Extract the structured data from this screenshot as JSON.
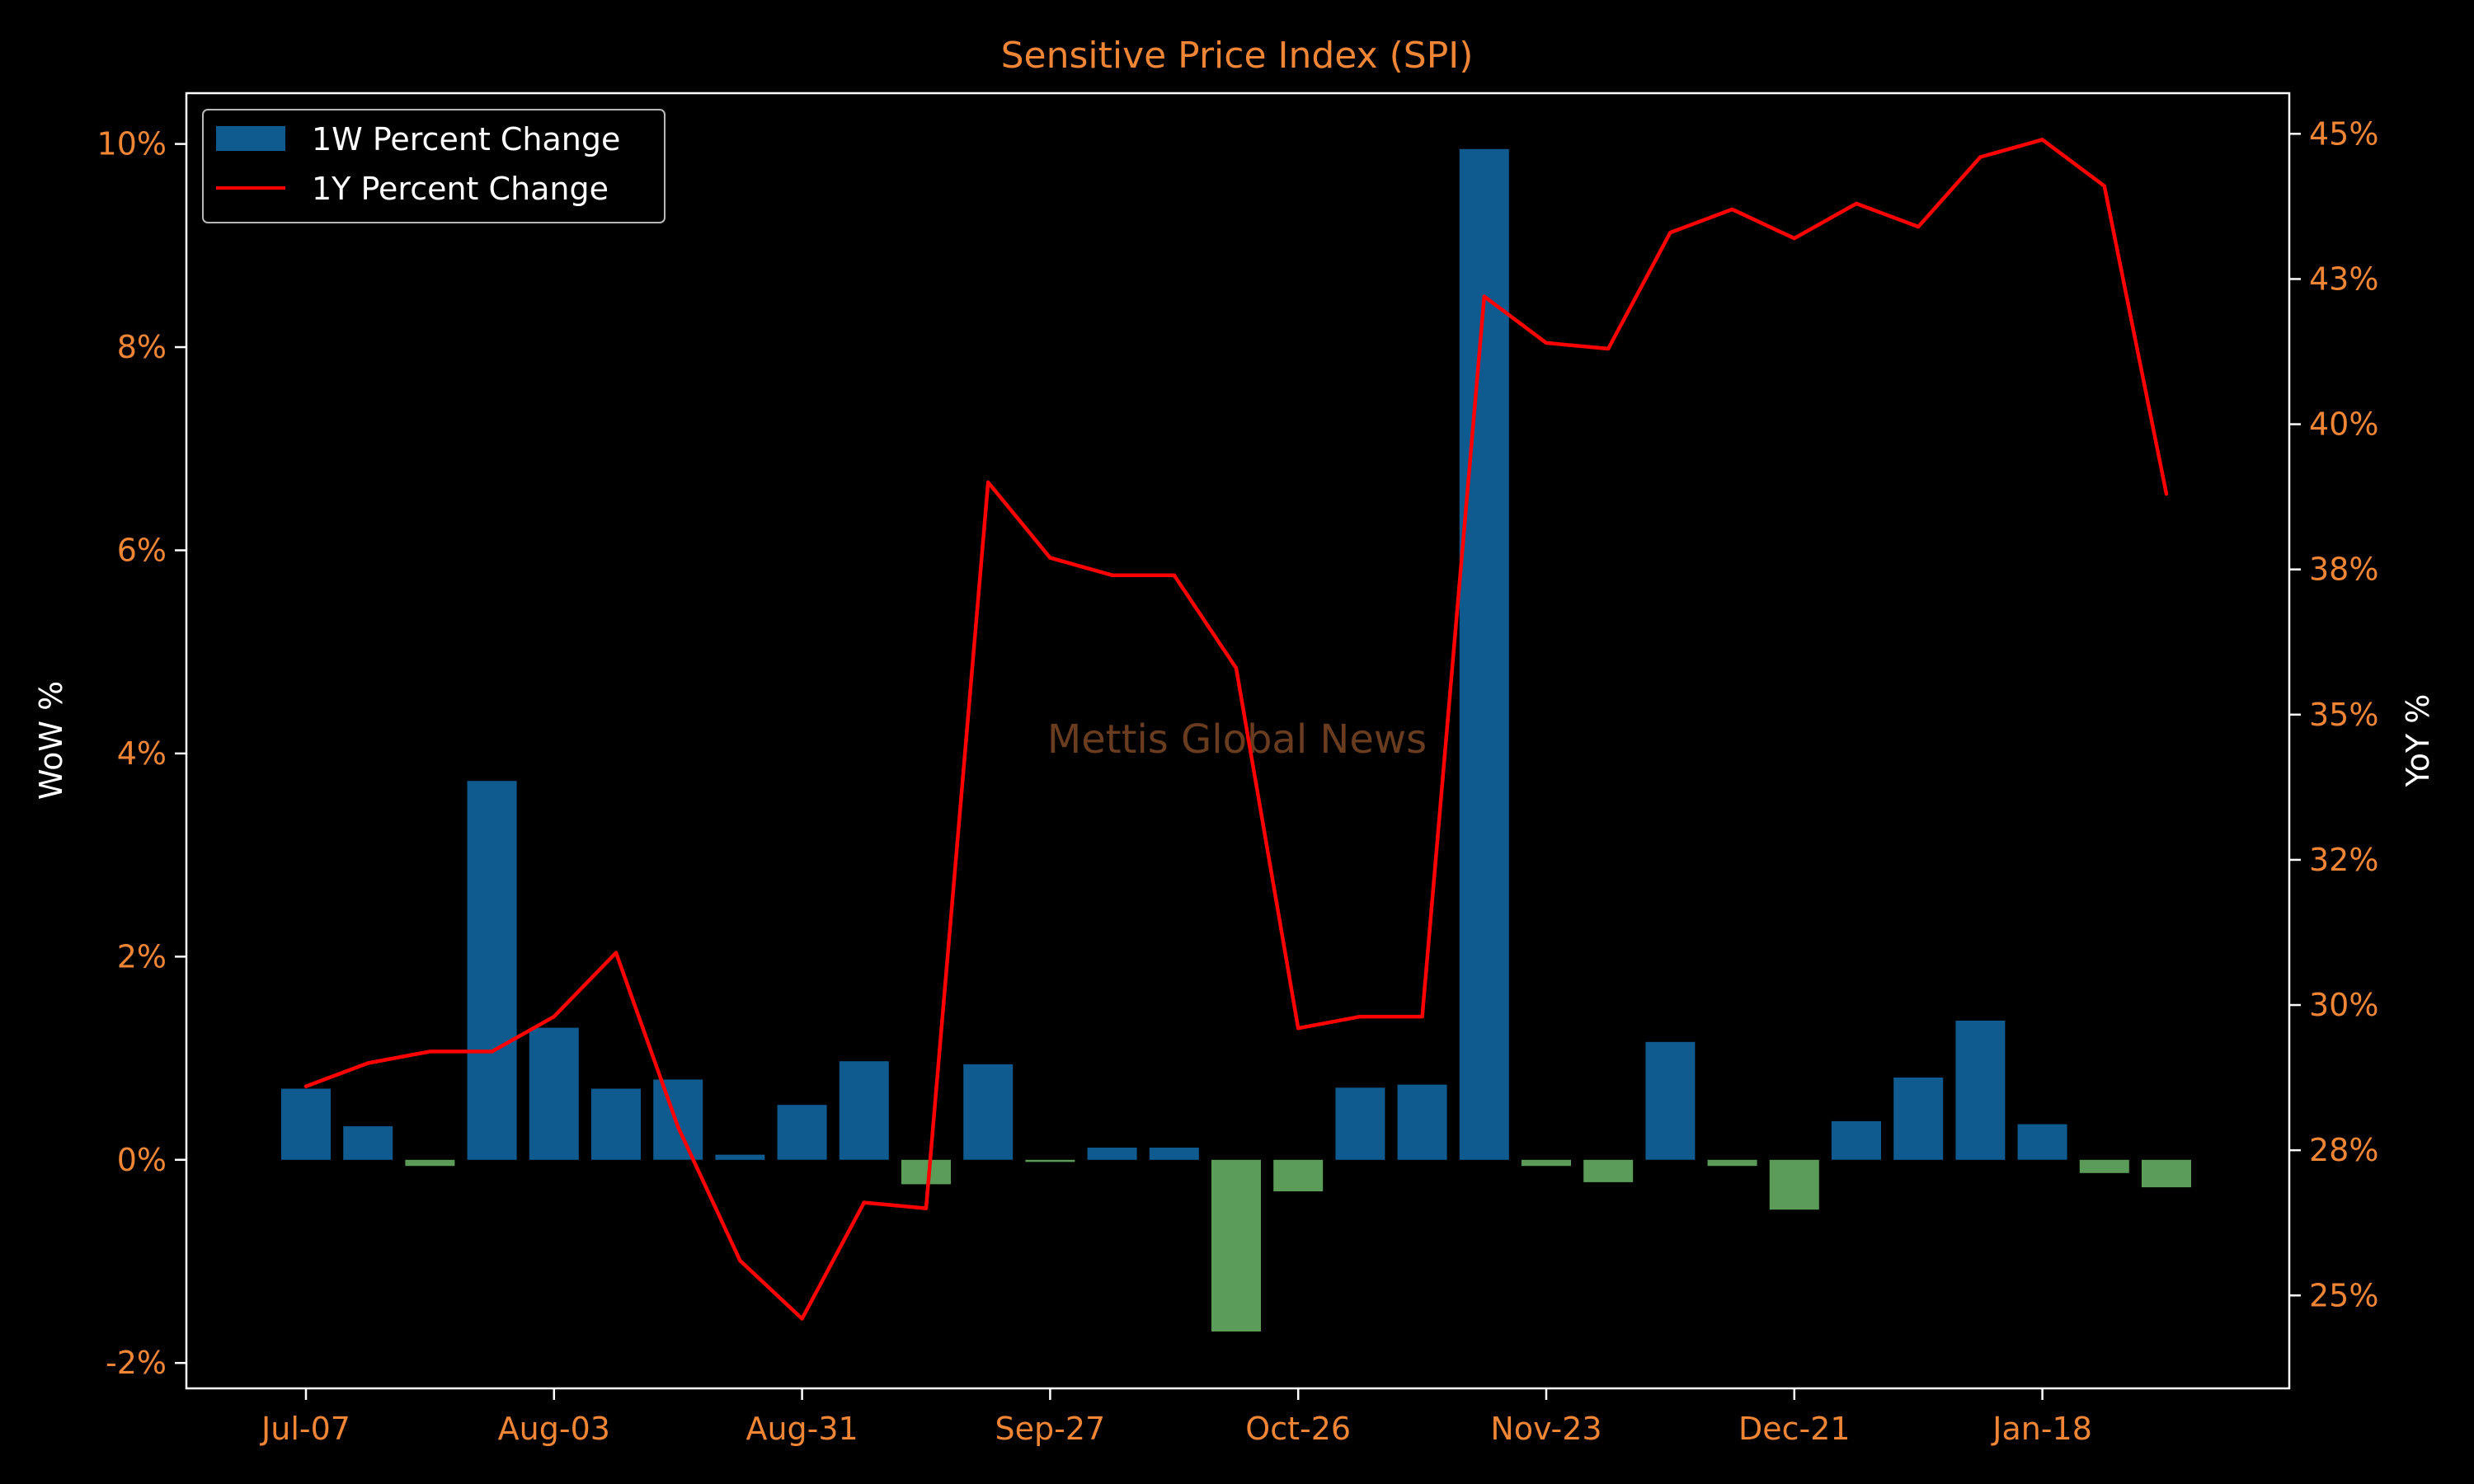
{
  "chart_data": {
    "type": "bar",
    "title": "Sensitive Price Index (SPI)",
    "ylabel": "WoW %",
    "y2label": "YoY %",
    "watermark": "Mettis Global News",
    "x_tick_labels": [
      "Jul-07",
      "Aug-03",
      "Aug-31",
      "Sep-27",
      "Oct-26",
      "Nov-23",
      "Dec-21",
      "Jan-18"
    ],
    "x_tick_index": [
      0,
      4,
      8,
      12,
      16,
      20,
      24,
      28
    ],
    "y_ticks": [
      -2,
      0,
      2,
      4,
      6,
      8,
      10
    ],
    "y_tick_labels": [
      "-2%",
      "0%",
      "2%",
      "4%",
      "6%",
      "8%",
      "10%"
    ],
    "ylim": [
      -2.25,
      10.5
    ],
    "y2_ticks": [
      25,
      27.5,
      30,
      32.5,
      35,
      37.5,
      40,
      42.5,
      45
    ],
    "y2_tick_labels": [
      "25%",
      "28%",
      "30%",
      "32%",
      "35%",
      "38%",
      "40%",
      "43%",
      "45%"
    ],
    "y2lim": [
      23.4,
      45.7
    ],
    "legend": {
      "position": "top-left",
      "entries": [
        "1W Percent Change",
        "1Y Percent Change"
      ]
    },
    "grid": false,
    "series": [
      {
        "name": "1W Percent Change",
        "kind": "bar",
        "axis": "left",
        "values": [
          0.7,
          0.33,
          -0.06,
          3.73,
          1.3,
          0.7,
          0.79,
          0.05,
          0.54,
          0.97,
          -0.24,
          0.94,
          -0.02,
          0.12,
          0.12,
          -1.69,
          -0.31,
          0.71,
          0.74,
          9.95,
          -0.06,
          -0.22,
          1.16,
          -0.06,
          -0.49,
          0.38,
          0.81,
          1.37,
          0.35,
          -0.13,
          -0.27
        ]
      },
      {
        "name": "1Y Percent Change",
        "kind": "line",
        "axis": "right",
        "values": [
          28.6,
          29.0,
          29.2,
          29.2,
          29.8,
          30.9,
          27.9,
          25.6,
          24.6,
          26.6,
          26.5,
          39.0,
          37.7,
          37.4,
          37.4,
          35.8,
          29.6,
          29.8,
          29.8,
          42.2,
          41.4,
          41.3,
          43.3,
          43.7,
          43.2,
          43.8,
          43.4,
          44.6,
          44.9,
          44.1,
          38.8
        ]
      }
    ],
    "colors": {
      "positive_bar": "#0f5a8f",
      "negative_bar": "#5a9c58",
      "line": "#ff0000",
      "title_text": "#f08535",
      "tick_text": "#f08535",
      "axis_label_text": "#ffffff",
      "watermark": "#6a3c1f",
      "frame": "#ffffff"
    }
  }
}
